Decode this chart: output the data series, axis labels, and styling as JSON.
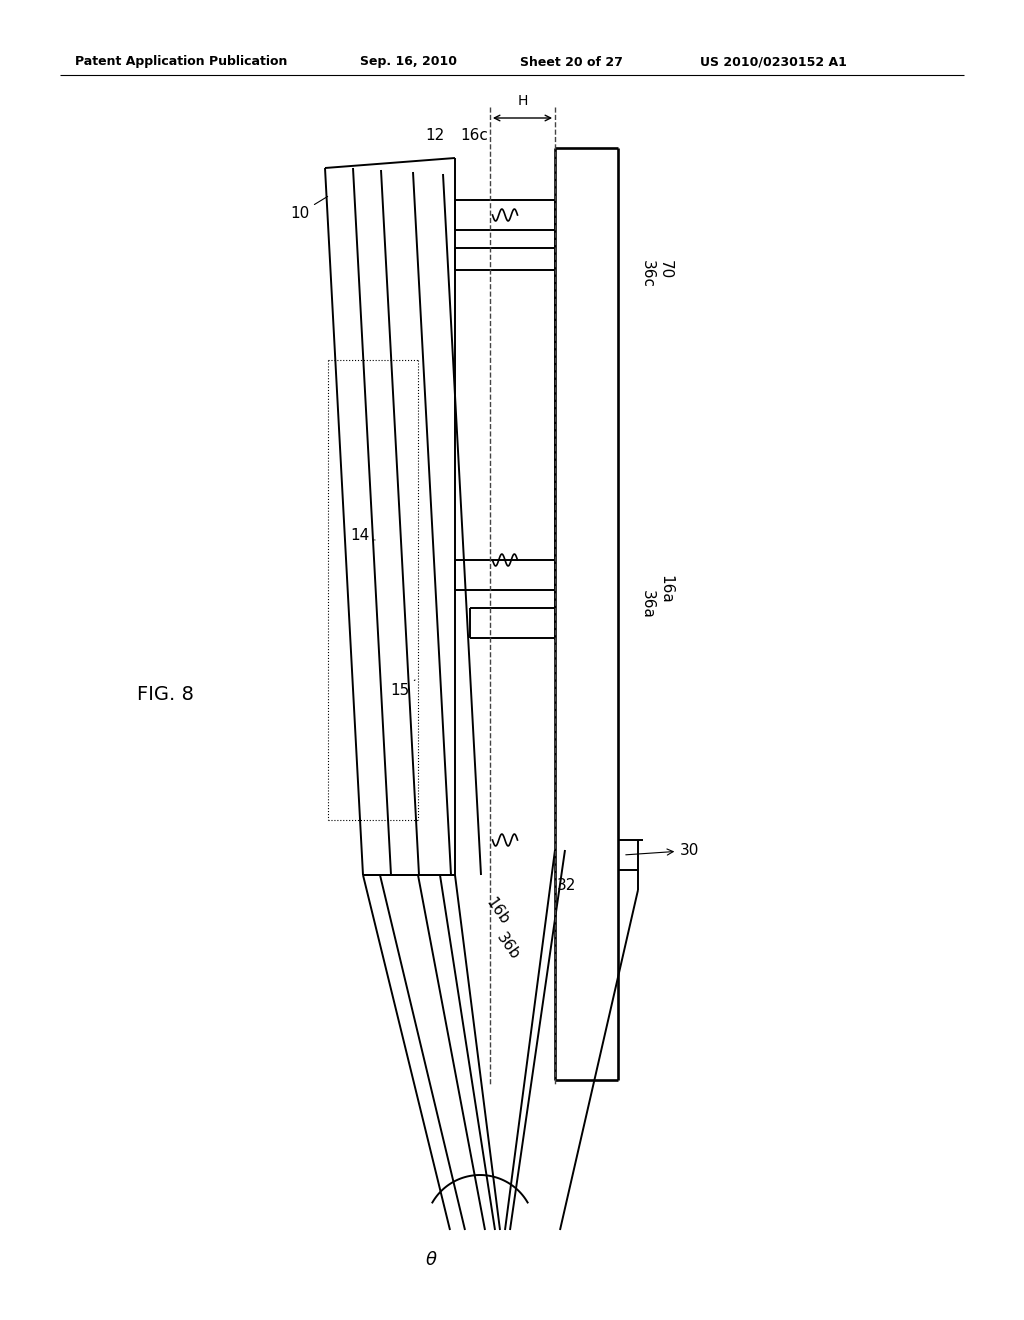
{
  "background_color": "#ffffff",
  "line_color": "#000000",
  "header_text": "Patent Application Publication",
  "header_date": "Sep. 16, 2010",
  "header_sheet": "Sheet 20 of 27",
  "header_patent": "US 2010/0230152 A1",
  "fig_label": "FIG. 8"
}
